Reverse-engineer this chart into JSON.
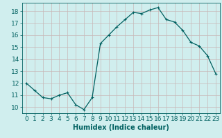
{
  "x": [
    0,
    1,
    2,
    3,
    4,
    5,
    6,
    7,
    8,
    9,
    10,
    11,
    12,
    13,
    14,
    15,
    16,
    17,
    18,
    19,
    20,
    21,
    22,
    23
  ],
  "y": [
    12.0,
    11.4,
    10.8,
    10.7,
    11.0,
    11.2,
    10.2,
    9.8,
    10.8,
    15.3,
    16.0,
    16.7,
    17.3,
    17.9,
    17.8,
    18.1,
    18.3,
    17.3,
    17.1,
    16.4,
    15.4,
    15.1,
    14.3,
    12.8
  ],
  "line_color": "#006060",
  "marker": "+",
  "marker_size": 3,
  "marker_linewidth": 0.8,
  "bg_color": "#d0eeee",
  "grid_color": "#c8b8b8",
  "xlabel": "Humidex (Indice chaleur)",
  "ylim": [
    9.5,
    18.7
  ],
  "xlim": [
    -0.5,
    23.5
  ],
  "yticks": [
    10,
    11,
    12,
    13,
    14,
    15,
    16,
    17,
    18
  ],
  "xticks": [
    0,
    1,
    2,
    3,
    4,
    5,
    6,
    7,
    8,
    9,
    10,
    11,
    12,
    13,
    14,
    15,
    16,
    17,
    18,
    19,
    20,
    21,
    22,
    23
  ],
  "xlabel_fontsize": 7,
  "tick_fontsize": 6.5,
  "linewidth": 0.9
}
